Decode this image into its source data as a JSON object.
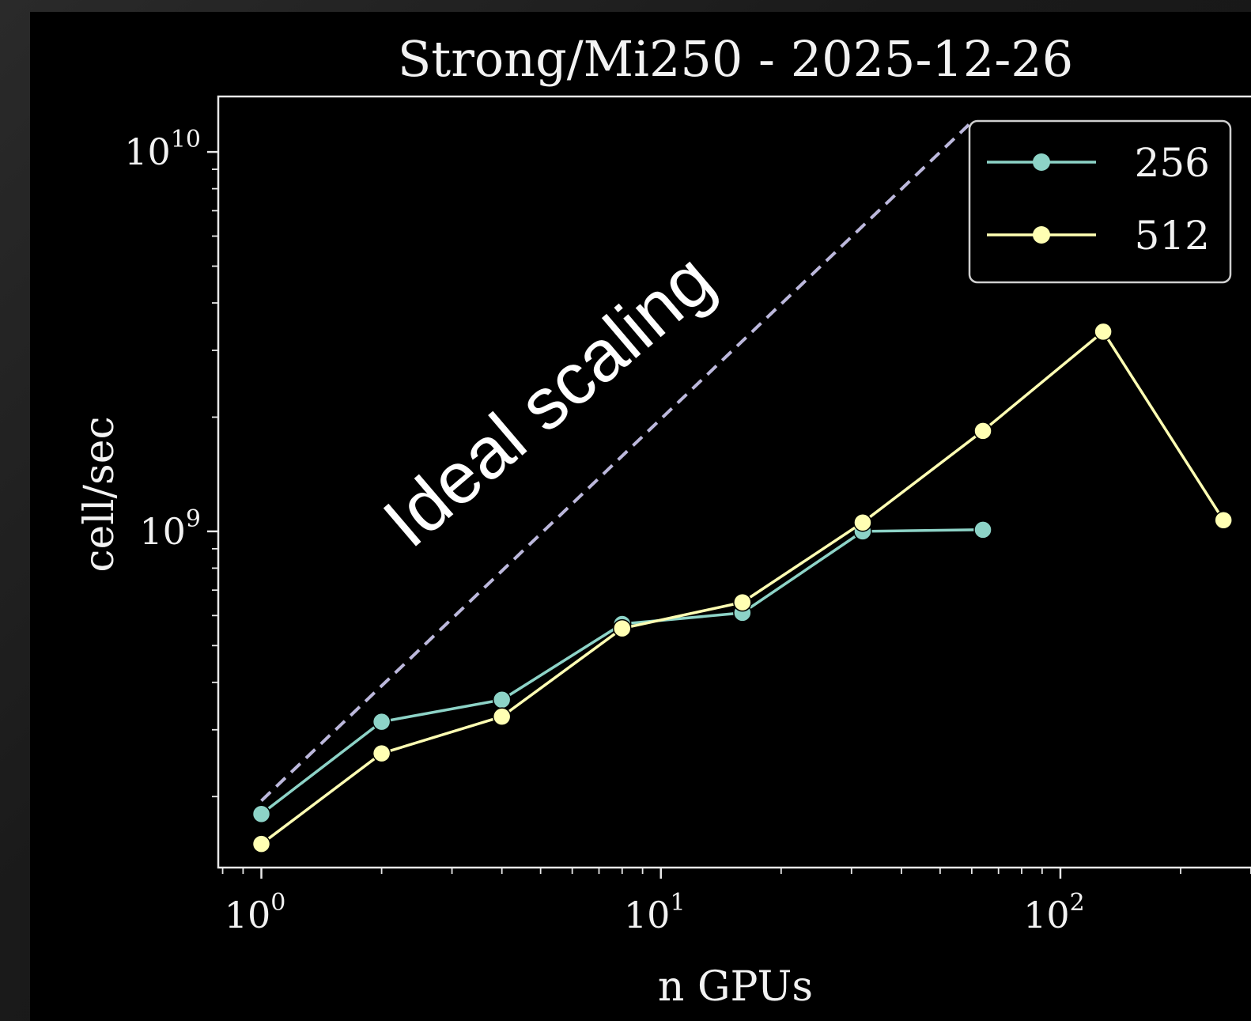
{
  "chart_data": {
    "type": "line",
    "title": "Strong/Mi250 - 2025-12-26",
    "xlabel": "n GPUs",
    "ylabel": "cell/sec",
    "xscale": "log",
    "yscale": "log",
    "xlim": [
      0.78,
      300
    ],
    "ylim": [
      130000000,
      14000000000
    ],
    "x_ticks": [
      {
        "value": 1,
        "base": "10",
        "exp": "0"
      },
      {
        "value": 10,
        "base": "10",
        "exp": "1"
      },
      {
        "value": 100,
        "base": "10",
        "exp": "2"
      }
    ],
    "y_ticks": [
      {
        "value": 1000000000,
        "base": "10",
        "exp": "9"
      },
      {
        "value": 10000000000,
        "base": "10",
        "exp": "10"
      }
    ],
    "legend_position": "top-right",
    "grid": false,
    "series": [
      {
        "name": "256",
        "color": "#8dd3c7",
        "x": [
          1,
          2,
          4,
          8,
          16,
          32,
          64
        ],
        "y": [
          180000000,
          315000000,
          360000000,
          570000000,
          610000000,
          1000000000,
          1010000000
        ]
      },
      {
        "name": "512",
        "color": "#ffffb3",
        "x": [
          1,
          2,
          4,
          8,
          16,
          32,
          64,
          128,
          256
        ],
        "y": [
          150000000,
          260000000,
          325000000,
          555000000,
          650000000,
          1055000000,
          1840000000,
          3360000000,
          1070000000
        ]
      }
    ],
    "ideal_line": {
      "x": [
        1,
        59
      ],
      "y": [
        195000000,
        11800000000
      ],
      "color": "#bcb8dc"
    },
    "annotation": "Ideal scaling"
  }
}
